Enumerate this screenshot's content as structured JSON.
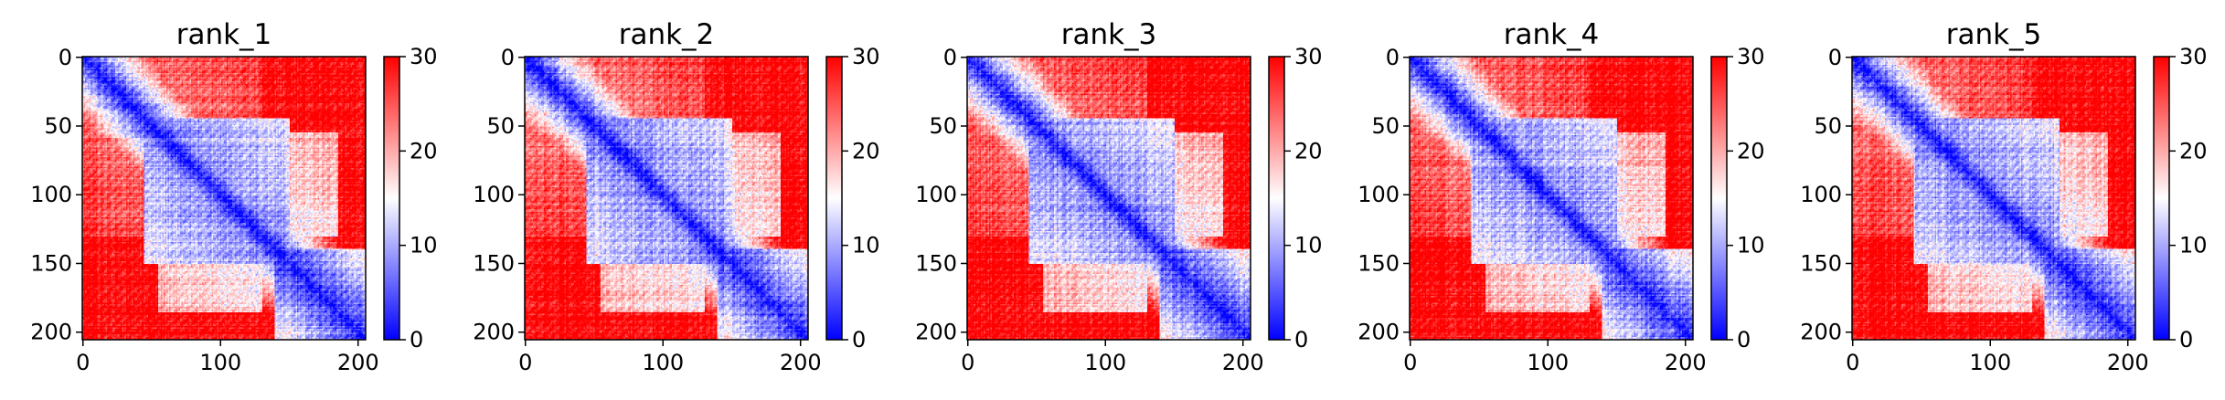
{
  "chart_data": {
    "type": "heatmap",
    "colormap": "bwr",
    "color_range": [
      0,
      30
    ],
    "colorbar_ticks": [
      0,
      10,
      20,
      30
    ],
    "x_ticks": [
      0,
      100,
      200
    ],
    "y_ticks": [
      0,
      50,
      100,
      150,
      200
    ],
    "matrix_size": 206,
    "panels": [
      {
        "title": "rank_1"
      },
      {
        "title": "rank_2"
      },
      {
        "title": "rank_3"
      },
      {
        "title": "rank_4"
      },
      {
        "title": "rank_5"
      }
    ]
  }
}
